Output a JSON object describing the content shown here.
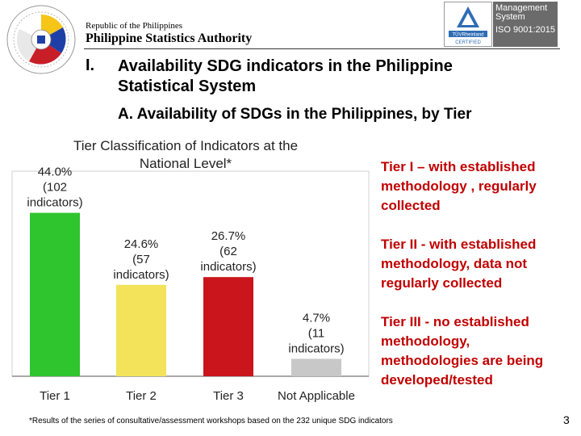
{
  "header": {
    "republic": "Republic of the Philippines",
    "agency": "Philippine Statistics Authority",
    "certification": {
      "title": "Management System",
      "standard": "ISO 9001:2015",
      "badge_brand": "TÜVRheinland",
      "badge_label": "CERTIFIED"
    }
  },
  "section": {
    "number": "I.",
    "title": "Availability SDG indicators in the Philippine Statistical System",
    "subtitle": "A. Availability of SDGs in the Philippines, by Tier"
  },
  "chart_data": {
    "type": "bar",
    "title": "Tier Classification of Indicators at the National Level*",
    "categories": [
      "Tier 1",
      "Tier 2",
      "Tier 3",
      "Not Applicable"
    ],
    "values": [
      44.0,
      24.6,
      26.7,
      4.7
    ],
    "data_labels": [
      "44.0% (102 indicators)",
      "24.6% (57 indicators)",
      "26.7% (62 indicators)",
      "4.7% (11 indicators)"
    ],
    "colors": [
      "#2ec52e",
      "#f2e35a",
      "#c9151b",
      "#c8c8c8"
    ],
    "ylim": [
      0,
      50
    ],
    "grid": false,
    "legend": "right"
  },
  "legend": [
    {
      "text": "Tier I – with established methodology , regularly collected"
    },
    {
      "text": "Tier II - with established methodology, data not regularly collected"
    },
    {
      "text": "Tier III - no established methodology, methodologies are being developed/tested"
    }
  ],
  "footer": {
    "footnote": "*Results of the series of consultative/assessment workshops based on the 232 unique SDG indicators",
    "page": "3"
  }
}
